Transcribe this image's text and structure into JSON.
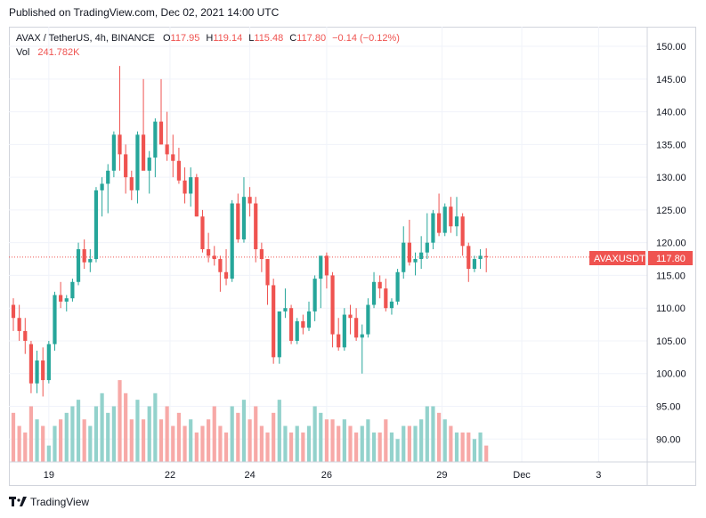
{
  "published": "Published on TradingView.com, Dec 02, 2021 14:00 UTC",
  "legend": {
    "symbol": "AVAX / TetherUS, 4h, BINANCE",
    "o_label": "O",
    "o": "117.95",
    "h_label": "H",
    "h": "119.14",
    "l_label": "L",
    "l": "115.48",
    "c_label": "C",
    "c": "117.80",
    "change": "−0.14 (−0.12%)",
    "vol_label": "Vol",
    "vol": "241.782K"
  },
  "price_tag": {
    "name": "AVAXUSDT",
    "value": "117.80"
  },
  "footer": {
    "brand": "TradingView"
  },
  "colors": {
    "up": "#26a69a",
    "down": "#ef5350",
    "up_vol": "#93d2cc",
    "down_vol": "#f7a9a7",
    "grid": "#f0f3fa"
  },
  "chart_data": {
    "type": "candlestick",
    "y_ticks": [
      "150.00",
      "145.00",
      "140.00",
      "135.00",
      "130.00",
      "125.00",
      "120.00",
      "115.00",
      "110.00",
      "105.00",
      "100.00",
      "95.00",
      "90.00"
    ],
    "x_ticks": [
      "19",
      "22",
      "24",
      "26",
      "29",
      "Dec",
      "3"
    ],
    "ylim": [
      86.5,
      153
    ],
    "last_price": 117.8,
    "candles": [
      [
        110.5,
        111.5,
        106.5,
        108.5
      ],
      [
        108.5,
        110.5,
        105.0,
        106.5
      ],
      [
        106.5,
        108.5,
        103.0,
        105.0
      ],
      [
        104.5,
        105.0,
        97.0,
        98.5
      ],
      [
        98.5,
        103.5,
        97.0,
        102.0
      ],
      [
        102.0,
        104.0,
        96.5,
        99.0
      ],
      [
        99.0,
        105.0,
        98.5,
        104.5
      ],
      [
        104.5,
        112.5,
        103.5,
        112.0
      ],
      [
        112.0,
        114.0,
        110.0,
        111.0
      ],
      [
        111.0,
        112.0,
        109.5,
        111.5
      ],
      [
        111.5,
        114.5,
        111.0,
        114.0
      ],
      [
        114.0,
        120.0,
        113.5,
        119.0
      ],
      [
        119.0,
        120.5,
        116.0,
        117.0
      ],
      [
        117.0,
        119.0,
        115.5,
        117.5
      ],
      [
        117.5,
        128.5,
        117.0,
        128.0
      ],
      [
        128.0,
        130.0,
        124.0,
        129.0
      ],
      [
        129.0,
        132.0,
        124.5,
        131.0
      ],
      [
        131.0,
        137.0,
        130.0,
        136.5
      ],
      [
        136.5,
        147.0,
        131.0,
        133.5
      ],
      [
        133.5,
        135.0,
        127.5,
        130.0
      ],
      [
        130.0,
        131.0,
        126.5,
        128.0
      ],
      [
        128.0,
        137.0,
        126.0,
        136.5
      ],
      [
        136.5,
        145.0,
        131.5,
        131.0
      ],
      [
        131.0,
        134.0,
        127.5,
        133.0
      ],
      [
        133.0,
        139.0,
        130.0,
        138.5
      ],
      [
        138.5,
        145.0,
        135.0,
        135.0
      ],
      [
        135.0,
        140.0,
        132.5,
        133.5
      ],
      [
        133.5,
        136.5,
        130.0,
        132.5
      ],
      [
        132.5,
        134.5,
        129.0,
        129.5
      ],
      [
        129.5,
        131.5,
        126.0,
        127.5
      ],
      [
        127.5,
        131.5,
        125.5,
        130.0
      ],
      [
        130.0,
        130.5,
        124.0,
        124.0
      ],
      [
        124.0,
        125.0,
        118.5,
        119.0
      ],
      [
        119.0,
        121.5,
        117.0,
        118.0
      ],
      [
        118.0,
        119.5,
        116.5,
        117.5
      ],
      [
        117.5,
        118.0,
        112.5,
        115.5
      ],
      [
        115.5,
        119.0,
        113.5,
        114.5
      ],
      [
        114.5,
        126.5,
        114.0,
        126.0
      ],
      [
        126.0,
        127.5,
        120.0,
        120.5
      ],
      [
        120.5,
        130.0,
        120.0,
        127.0
      ],
      [
        127.0,
        128.5,
        124.0,
        126.0
      ],
      [
        126.0,
        127.0,
        117.0,
        119.0
      ],
      [
        119.0,
        120.0,
        115.5,
        117.5
      ],
      [
        117.5,
        117.5,
        110.5,
        113.5
      ],
      [
        113.5,
        114.5,
        101.5,
        102.5
      ],
      [
        102.5,
        109.0,
        101.5,
        109.5
      ],
      [
        109.5,
        113.0,
        108.5,
        110.0
      ],
      [
        110.0,
        110.5,
        104.5,
        105.0
      ],
      [
        105.0,
        108.5,
        104.5,
        108.0
      ],
      [
        108.0,
        109.0,
        106.0,
        107.0
      ],
      [
        107.0,
        111.0,
        106.5,
        109.5
      ],
      [
        109.5,
        115.0,
        108.0,
        114.5
      ],
      [
        114.5,
        117.5,
        110.0,
        118.0
      ],
      [
        118.0,
        118.5,
        113.0,
        115.0
      ],
      [
        115.0,
        115.5,
        104.0,
        106.0
      ],
      [
        106.0,
        108.5,
        103.5,
        104.0
      ],
      [
        104.0,
        110.0,
        103.5,
        109.0
      ],
      [
        109.0,
        110.5,
        106.0,
        108.5
      ],
      [
        108.5,
        110.0,
        105.0,
        105.5
      ],
      [
        105.5,
        107.5,
        100.0,
        106.0
      ],
      [
        106.0,
        111.5,
        105.5,
        110.5
      ],
      [
        110.5,
        115.5,
        110.0,
        114.0
      ],
      [
        114.0,
        115.0,
        111.5,
        113.0
      ],
      [
        113.0,
        114.5,
        109.5,
        110.0
      ],
      [
        110.0,
        111.5,
        109.0,
        111.0
      ],
      [
        111.0,
        116.0,
        110.5,
        115.5
      ],
      [
        115.5,
        122.5,
        114.5,
        120.0
      ],
      [
        120.0,
        123.5,
        116.5,
        117.0
      ],
      [
        117.0,
        118.5,
        115.0,
        117.5
      ],
      [
        117.5,
        121.0,
        116.0,
        118.5
      ],
      [
        118.5,
        124.5,
        117.5,
        120.0
      ],
      [
        120.0,
        125.0,
        119.0,
        124.5
      ],
      [
        124.5,
        127.5,
        121.0,
        121.5
      ],
      [
        121.5,
        126.0,
        121.0,
        125.5
      ],
      [
        125.5,
        127.0,
        121.5,
        122.5
      ],
      [
        122.5,
        127.0,
        121.0,
        124.0
      ],
      [
        124.0,
        124.5,
        118.0,
        119.5
      ],
      [
        119.5,
        120.0,
        114.0,
        116.0
      ],
      [
        116.0,
        118.0,
        115.5,
        117.5
      ],
      [
        117.5,
        119.0,
        116.0,
        118.0
      ],
      [
        117.95,
        119.14,
        115.48,
        117.8
      ]
    ],
    "volumes": [
      94,
      92,
      91,
      95,
      93,
      92,
      89,
      92,
      93,
      94,
      95,
      96,
      93,
      92,
      95,
      97,
      94,
      95,
      99,
      97,
      93,
      96,
      93,
      95,
      97,
      93,
      95,
      92,
      94,
      92,
      93,
      91,
      92,
      93,
      95,
      92,
      91,
      95,
      94,
      96,
      93,
      95,
      92,
      91,
      94,
      96,
      92,
      91,
      92,
      91,
      92,
      95,
      94,
      93,
      93,
      92,
      93,
      92,
      91,
      92,
      93,
      91,
      91,
      93,
      91,
      90,
      92,
      92,
      92,
      93,
      95,
      95,
      94,
      93,
      92,
      91,
      91,
      91,
      90,
      91,
      89
    ]
  }
}
